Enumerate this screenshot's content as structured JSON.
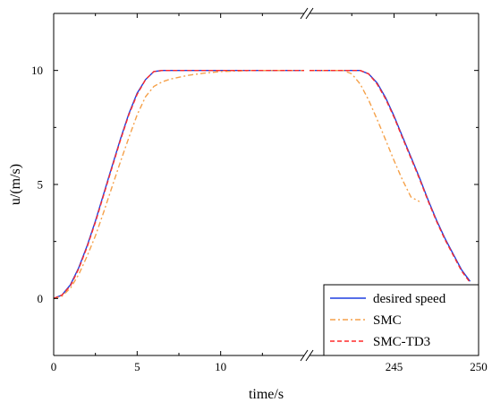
{
  "chart_data": {
    "type": "line",
    "title": "",
    "xlabel": "time/s",
    "ylabel": "u/(m/s)",
    "grid": false,
    "legend_position": "bottom-right",
    "x_axis_break": {
      "from": 15,
      "to": 240
    },
    "segments": [
      {
        "xlim": [
          0,
          15
        ]
      },
      {
        "xlim": [
          240,
          250
        ]
      }
    ],
    "ylim": [
      -2.5,
      12.5
    ],
    "x_ticks": [
      0,
      5,
      10,
      245,
      250
    ],
    "x_tick_labels": [
      "0",
      "5",
      "10",
      "245",
      "250"
    ],
    "y_ticks": [
      0,
      5,
      10
    ],
    "y_tick_labels": [
      "0",
      "5",
      "10"
    ],
    "colors": {
      "desired": "#1f3fe0",
      "smc": "#f5a14a",
      "td3": "#ff2a2a"
    },
    "series": [
      {
        "name": "desired speed",
        "color": "#1f3fe0",
        "style": "solid",
        "x": [
          0,
          0.5,
          1,
          1.5,
          2,
          2.5,
          3,
          3.5,
          4,
          4.5,
          5,
          5.5,
          6,
          6.5,
          7,
          10,
          15,
          240,
          243,
          243.5,
          244,
          244.5,
          245,
          245.5,
          246,
          246.5,
          247,
          247.5,
          248,
          248.5,
          249,
          249.5
        ],
        "y": [
          0,
          0.15,
          0.6,
          1.35,
          2.3,
          3.4,
          4.6,
          5.8,
          7.0,
          8.1,
          9.0,
          9.6,
          9.95,
          10,
          10,
          10,
          10,
          10,
          10,
          9.85,
          9.45,
          8.8,
          8.0,
          7.1,
          6.2,
          5.3,
          4.35,
          3.45,
          2.65,
          1.95,
          1.25,
          0.75
        ]
      },
      {
        "name": "SMC",
        "color": "#f5a14a",
        "style": "dashdot",
        "x": [
          0,
          0.5,
          1,
          1.5,
          2,
          2.5,
          3,
          3.5,
          4,
          4.5,
          5,
          5.5,
          6,
          6.5,
          7,
          8,
          9,
          10,
          12,
          15,
          240,
          242,
          242.5,
          243,
          243.5,
          244,
          244.5,
          245,
          245.5,
          246,
          246.5
        ],
        "y": [
          0,
          0.1,
          0.45,
          1.05,
          1.85,
          2.75,
          3.8,
          4.9,
          6.0,
          7.05,
          8.05,
          8.85,
          9.3,
          9.5,
          9.62,
          9.78,
          9.88,
          9.95,
          10,
          10,
          10,
          10,
          9.85,
          9.4,
          8.7,
          7.85,
          6.95,
          6.05,
          5.2,
          4.45,
          4.25
        ]
      },
      {
        "name": "SMC-TD3",
        "color": "#ff2a2a",
        "style": "dashed",
        "x": [
          0,
          0.5,
          1,
          1.5,
          2,
          2.5,
          3,
          3.5,
          4,
          4.5,
          5,
          5.5,
          6,
          6.5,
          7,
          10,
          15,
          240,
          243,
          243.5,
          244,
          244.5,
          245,
          245.5,
          246,
          246.5,
          247,
          247.5,
          248,
          248.5,
          249,
          249.5
        ],
        "y": [
          0,
          0.15,
          0.55,
          1.3,
          2.25,
          3.35,
          4.55,
          5.75,
          6.95,
          8.05,
          8.95,
          9.6,
          9.95,
          10,
          10,
          10,
          10,
          10,
          10,
          9.85,
          9.4,
          8.75,
          7.95,
          7.05,
          6.15,
          5.25,
          4.3,
          3.4,
          2.6,
          1.9,
          1.2,
          0.7
        ]
      }
    ]
  }
}
